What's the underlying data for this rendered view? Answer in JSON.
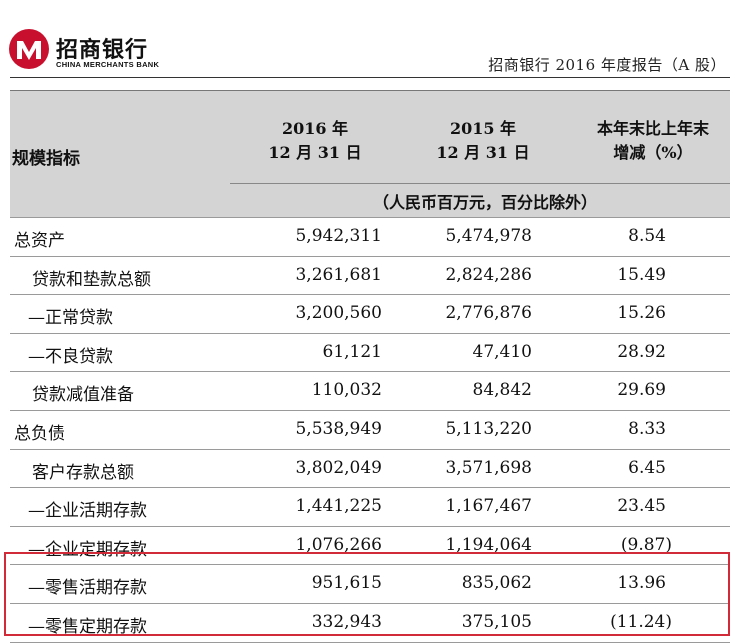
{
  "header": {
    "brand_cn": "招商银行",
    "brand_en": "CHINA MERCHANTS BANK",
    "report_title": "招商银行 2016 年度报告（A 股）"
  },
  "table": {
    "metric_header": "规模指标",
    "col_2016": [
      "2016 年",
      "12 月 31 日"
    ],
    "col_2015": [
      "2015 年",
      "12 月 31 日"
    ],
    "col_change": [
      "本年末比上年末",
      "增减（%）"
    ],
    "unit_note": "（人民币百万元，百分比除外）",
    "rows": [
      {
        "label": "总资产",
        "v2016": "5,942,311",
        "v2015": "5,474,978",
        "change": "8.54"
      },
      {
        "label": "贷款和垫款总额",
        "v2016": "3,261,681",
        "v2015": "2,824,286",
        "change": "15.49"
      },
      {
        "label": "—正常贷款",
        "v2016": "3,200,560",
        "v2015": "2,776,876",
        "change": "15.26"
      },
      {
        "label": "—不良贷款",
        "v2016": "61,121",
        "v2015": "47,410",
        "change": "28.92"
      },
      {
        "label": "贷款减值准备",
        "v2016": "110,032",
        "v2015": "84,842",
        "change": "29.69"
      },
      {
        "label": "总负债",
        "v2016": "5,538,949",
        "v2015": "5,113,220",
        "change": "8.33"
      },
      {
        "label": "客户存款总额",
        "v2016": "3,802,049",
        "v2015": "3,571,698",
        "change": "6.45"
      },
      {
        "label": "—企业活期存款",
        "v2016": "1,441,225",
        "v2015": "1,167,467",
        "change": "23.45"
      },
      {
        "label": "—企业定期存款",
        "v2016": "1,076,266",
        "v2015": "1,194,064",
        "change": "(9.87)"
      },
      {
        "label": "—零售活期存款",
        "v2016": "951,615",
        "v2015": "835,062",
        "change": "13.96"
      },
      {
        "label": "—零售定期存款",
        "v2016": "332,943",
        "v2015": "375,105",
        "change": "(11.24)"
      }
    ]
  },
  "colors": {
    "highlight": "#d12b3a",
    "logo_red": "#c8102e",
    "header_bg": "#d4d4d4"
  }
}
